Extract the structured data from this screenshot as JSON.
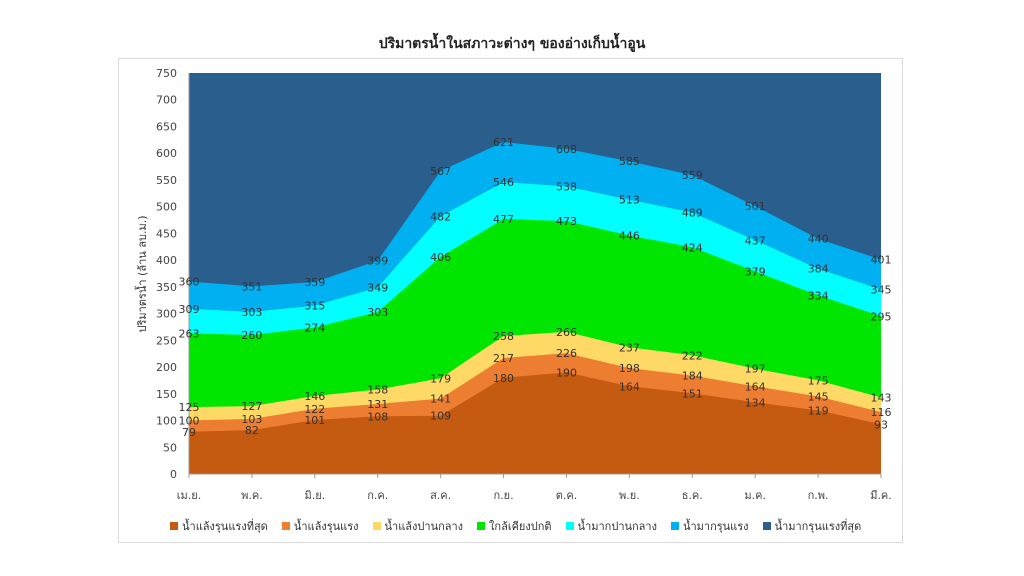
{
  "chart_data": {
    "type": "area",
    "title": "ปริมาตรน้ำในสภาวะต่างๆ ของอ่างเก็บน้ำอูน",
    "ylabel": "ปริมาตรน้ำ (ล้าน ลบ.ม.)",
    "xlabel": "",
    "ylim": [
      0,
      750
    ],
    "yticks": [
      0,
      50,
      100,
      150,
      200,
      250,
      300,
      350,
      400,
      450,
      500,
      550,
      600,
      650,
      700,
      750
    ],
    "categories": [
      "เม.ย.",
      "พ.ค.",
      "มิ.ย.",
      "ก.ค.",
      "ส.ค.",
      "ก.ย.",
      "ต.ค.",
      "พ.ย.",
      "ธ.ค.",
      "ม.ค.",
      "ก.พ.",
      "มี.ค."
    ],
    "legend_position": "bottom",
    "grid": false,
    "series": [
      {
        "name": "น้ำแล้งรุนแรงที่สุด",
        "color": "#c55a11",
        "values": [
          79,
          82,
          101,
          108,
          109,
          180,
          190,
          164,
          151,
          134,
          119,
          93
        ],
        "labeled": true
      },
      {
        "name": "น้ำแล้งรุนแรง",
        "color": "#ed7d31",
        "values": [
          100,
          103,
          122,
          131,
          141,
          217,
          226,
          198,
          184,
          164,
          145,
          116
        ],
        "labeled": true
      },
      {
        "name": "น้ำแล้งปานกลาง",
        "color": "#ffd966",
        "values": [
          125,
          127,
          146,
          158,
          179,
          258,
          266,
          237,
          222,
          197,
          175,
          143
        ],
        "labeled": true
      },
      {
        "name": "ใกล้เคียงปกติ",
        "color": "#00e600",
        "values": [
          263,
          260,
          274,
          303,
          406,
          477,
          473,
          446,
          424,
          379,
          334,
          295
        ],
        "labeled": true
      },
      {
        "name": "น้ำมากปานกลาง",
        "color": "#00ffff",
        "values": [
          309,
          303,
          315,
          349,
          482,
          546,
          538,
          513,
          489,
          437,
          384,
          345
        ],
        "labeled": true
      },
      {
        "name": "น้ำมากรุนแรง",
        "color": "#00b0f0",
        "values": [
          360,
          351,
          359,
          399,
          567,
          621,
          608,
          585,
          559,
          501,
          440,
          401
        ],
        "labeled": true
      },
      {
        "name": "น้ำมากรุนแรงที่สุด",
        "color": "#2a5e8c",
        "values": [
          750,
          750,
          750,
          750,
          750,
          750,
          750,
          750,
          750,
          750,
          750,
          750
        ],
        "labeled": false
      }
    ]
  }
}
